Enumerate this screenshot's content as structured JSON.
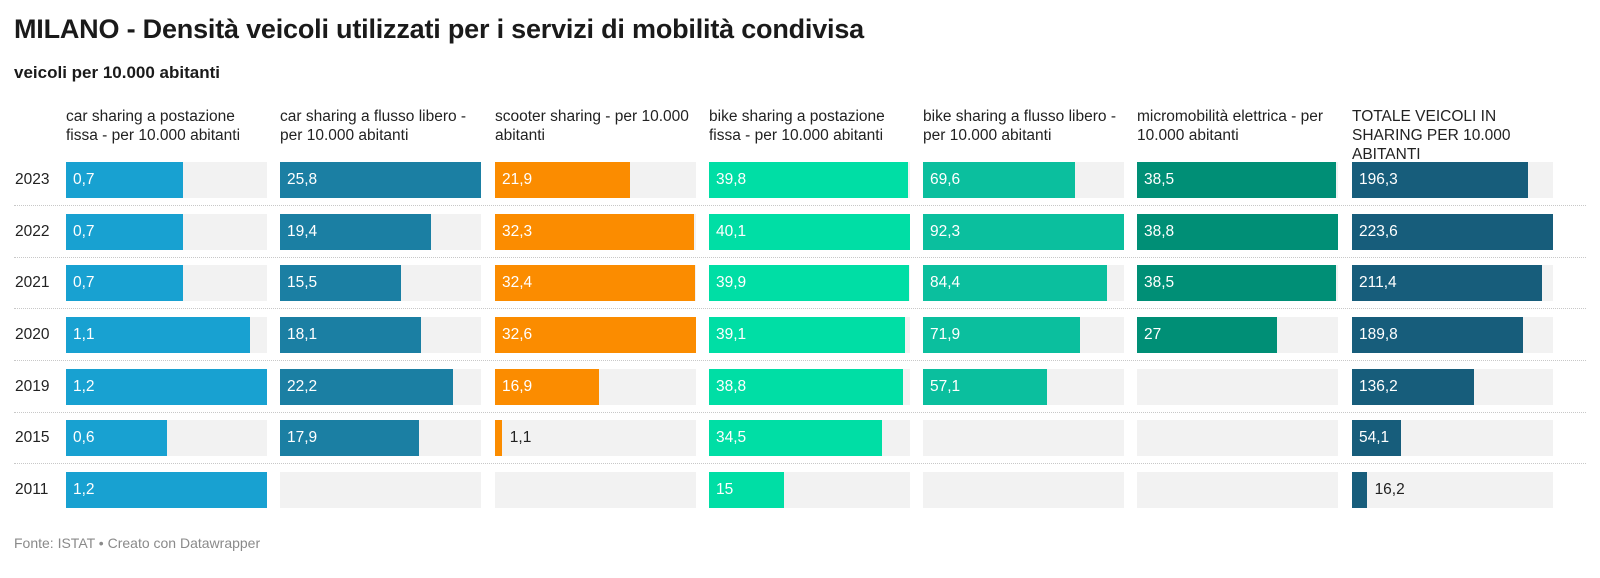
{
  "title": "MILANO - Densità veicoli utilizzati per i servizi di mobilità condivisa",
  "subtitle": "veicoli per 10.000 abitanti",
  "footer": "Fonte: ISTAT • Creato con Datawrapper",
  "chart_data": {
    "type": "bar",
    "orientation": "horizontal",
    "layout": "small-multiples",
    "title": "MILANO - Densità veicoli utilizzati per i servizi di mobilità condivisa",
    "subtitle": "veicoli per 10.000 abitanti",
    "categories": [
      "2023",
      "2022",
      "2021",
      "2020",
      "2019",
      "2015",
      "2011"
    ],
    "categories_labels": [
      "2023",
      "2022",
      "2021",
      "2020",
      "2019",
      "2015",
      "2011"
    ],
    "series": [
      {
        "name": "car sharing a postazione fissa - per 10.000 abitanti",
        "color": "#18a1d1",
        "values": [
          0.7,
          0.7,
          0.7,
          1.1,
          1.2,
          0.6,
          1.2
        ],
        "labels": [
          "0,7",
          "0,7",
          "0,7",
          "1,1",
          "1,2",
          "0,6",
          "1,2"
        ]
      },
      {
        "name": "car sharing a flusso libero - per 10.000 abitanti",
        "color": "#1b7fa3",
        "values": [
          25.8,
          19.4,
          15.5,
          18.1,
          22.2,
          17.9,
          null
        ],
        "labels": [
          "25,8",
          "19,4",
          "15,5",
          "18,1",
          "22,2",
          "17,9",
          null
        ]
      },
      {
        "name": "scooter sharing - per 10.000 abitanti",
        "color": "#fb8c00",
        "values": [
          21.9,
          32.3,
          32.4,
          32.6,
          16.9,
          1.1,
          null
        ],
        "labels": [
          "21,9",
          "32,3",
          "32,4",
          "32,6",
          "16,9",
          "1,1",
          null
        ]
      },
      {
        "name": "bike sharing a postazione fissa - per 10.000 abitanti",
        "color": "#00dea5",
        "values": [
          39.8,
          40.1,
          39.9,
          39.1,
          38.8,
          34.5,
          15
        ],
        "labels": [
          "39,8",
          "40,1",
          "39,9",
          "39,1",
          "38,8",
          "34,5",
          "15"
        ]
      },
      {
        "name": "bike sharing a flusso libero - per 10.000 abitanti",
        "color": "#0bbf9e",
        "values": [
          69.6,
          92.3,
          84.4,
          71.9,
          57.1,
          null,
          null
        ],
        "labels": [
          "69,6",
          "92,3",
          "84,4",
          "71,9",
          "57,1",
          null,
          null
        ]
      },
      {
        "name": "micromobilità elettrica - per 10.000 abitanti",
        "color": "#008f76",
        "values": [
          38.5,
          38.8,
          38.5,
          27,
          null,
          null,
          null
        ],
        "labels": [
          "38,5",
          "38,8",
          "38,5",
          "27",
          null,
          null,
          null
        ]
      },
      {
        "name": "TOTALE VEICOLI IN SHARING PER 10.000 ABITANTI",
        "color": "#175d7b",
        "values": [
          196.3,
          223.6,
          211.4,
          189.8,
          136.2,
          54.1,
          16.2
        ],
        "labels": [
          "196,3",
          "223,6",
          "211,4",
          "189,8",
          "136,2",
          "54,1",
          "16,2"
        ]
      }
    ]
  }
}
